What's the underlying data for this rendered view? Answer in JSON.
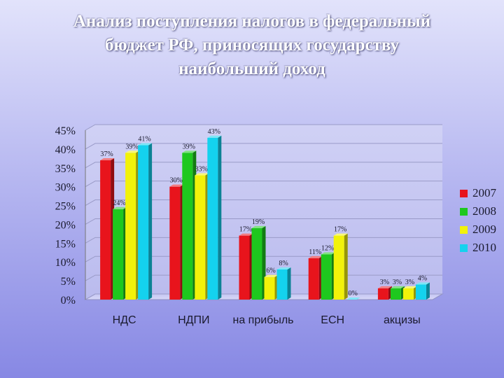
{
  "slide": {
    "title": "Анализ поступления налогов в федеральный\nбюджет РФ, приносящих государству\nнаибольший доход"
  },
  "chart_data": {
    "type": "bar",
    "categories": [
      "НДС",
      "НДПИ",
      "на прибыль",
      "ЕСН",
      "акцизы"
    ],
    "series": [
      {
        "name": "2007",
        "color": "#e8141c",
        "values": [
          37,
          30,
          17,
          11,
          3
        ],
        "labels": [
          "37%",
          "30%",
          "17%",
          "11%",
          "3%"
        ]
      },
      {
        "name": "2008",
        "color": "#1ec81e",
        "values": [
          24,
          39,
          19,
          12,
          3
        ],
        "labels": [
          "24%",
          "39%",
          "19%",
          "12%",
          "3%"
        ]
      },
      {
        "name": "2009",
        "color": "#f2f20a",
        "values": [
          39,
          33,
          6,
          17,
          3
        ],
        "labels": [
          "39%",
          "33%",
          "6%",
          "17%",
          "3%"
        ]
      },
      {
        "name": "2010",
        "color": "#14d2ee",
        "values": [
          41,
          43,
          8,
          0,
          4
        ],
        "labels": [
          "41%",
          "43%",
          "8%",
          "0%",
          "4%"
        ]
      }
    ],
    "y_ticks": [
      "0%",
      "5%",
      "10%",
      "15%",
      "20%",
      "25%",
      "30%",
      "35%",
      "40%",
      "45%"
    ],
    "ylim": [
      0,
      45
    ],
    "grid": true,
    "legend_position": "right"
  }
}
